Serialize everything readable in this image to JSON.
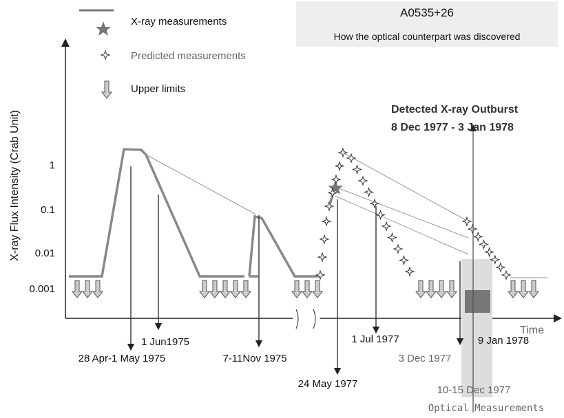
{
  "title": "A0535+26",
  "subtitle": "How the optical counterpart was discovered",
  "legend": [
    "X-ray measurements",
    "Predicted measurements",
    "Upper limits"
  ],
  "y_axis": {
    "label": "X-ray Flux Intensity (Crab Unit)",
    "ticks": [
      "1",
      "0.1",
      "0.01",
      "0.001"
    ]
  },
  "x_axis": {
    "label": "Time"
  },
  "outburst": [
    "Detected X-ray Outburst",
    "8 Dec 1977 - 3 Jan 1978"
  ],
  "annotations": [
    "28 Apr-1 May 1975",
    "1 Jun1975",
    "7-11Nov 1975",
    "24 May 1977",
    "1 Jul 1977",
    "9 Jan 1978",
    "3 Dec 1977",
    "10-15 Dec 1977"
  ],
  "optical": "Optical Measurements"
}
